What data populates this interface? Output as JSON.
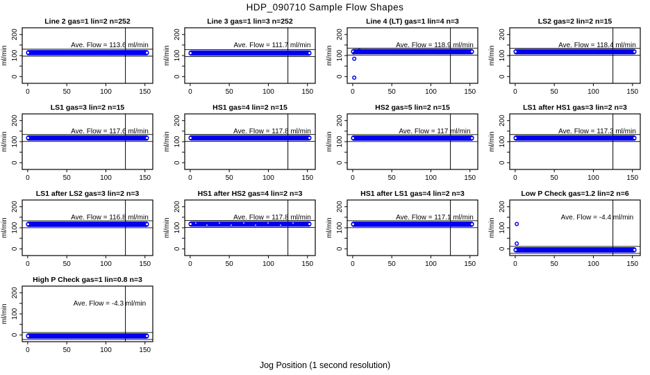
{
  "page_title": "HDP_090710  Sample Flow Shapes",
  "xlabel": "Jog Position (1 second resolution)",
  "colors": {
    "point_blue": "#0000EE",
    "axis_black": "#000000",
    "background": "#FFFFFF"
  },
  "chart_data": {
    "type": "scatter",
    "layout_hint": "13 small-multiple panels in a 4x4 grid, last row has 1 panel; grid off; no legend",
    "ylabel_per_panel": "ml/min",
    "x_ticks": [
      0,
      50,
      100,
      150
    ],
    "y_ticks": [
      0,
      50,
      100,
      150,
      200
    ],
    "y_tick_labels": [
      "0",
      "100",
      "200"
    ],
    "xlim": [
      -7,
      160
    ],
    "ylim": [
      -32,
      232
    ],
    "vline_x": 125,
    "band_x_range": [
      0,
      153
    ],
    "ave_prefix": "Ave. Flow =",
    "unit": "ml/min",
    "panels": [
      {
        "title": "Line 2 gas=1 lin=2 n=252",
        "ave_flow": "113.6",
        "flow": 113.6,
        "outliers": [],
        "hump": false,
        "speckled": false
      },
      {
        "title": "Line 3 gas=1 lin=3 n=252",
        "ave_flow": "111.7",
        "flow": 111.7,
        "outliers": [],
        "hump": false,
        "speckled": false
      },
      {
        "title": "Line 4 (LT) gas=1 lin=4 n=3",
        "ave_flow": "118.9",
        "flow": 118.9,
        "outliers": [
          [
            2,
            -5
          ],
          [
            2,
            85
          ]
        ],
        "hump": true,
        "speckled": false
      },
      {
        "title": "LS2 gas=2 lin=2 n=15",
        "ave_flow": "118.4",
        "flow": 118.4,
        "outliers": [],
        "hump": false,
        "speckled": false
      },
      {
        "title": "LS1 gas=3 lin=2 n=15",
        "ave_flow": "117.6",
        "flow": 117.6,
        "outliers": [],
        "hump": false,
        "speckled": false
      },
      {
        "title": "HS1 gas=4 lin=2 n=15",
        "ave_flow": "117.8",
        "flow": 117.8,
        "outliers": [],
        "hump": false,
        "speckled": false
      },
      {
        "title": "HS2 gas=5 lin=2 n=15",
        "ave_flow": "117",
        "flow": 117.0,
        "outliers": [],
        "hump": false,
        "speckled": false
      },
      {
        "title": "LS1 after HS1 gas=3 lin=2 n=3",
        "ave_flow": "117.3",
        "flow": 117.3,
        "outliers": [],
        "hump": false,
        "speckled": false
      },
      {
        "title": "LS1 after LS2 gas=3 lin=2 n=3",
        "ave_flow": "116.8",
        "flow": 116.8,
        "outliers": [],
        "hump": false,
        "speckled": false
      },
      {
        "title": "HS1 after HS2 gas=4 lin=2 n=3",
        "ave_flow": "117.8",
        "flow": 117.8,
        "outliers": [],
        "hump": false,
        "speckled": true
      },
      {
        "title": "HS1 after LS1 gas=4 lin=2 n=3",
        "ave_flow": "117.1",
        "flow": 117.1,
        "outliers": [],
        "hump": false,
        "speckled": false
      },
      {
        "title": "Low P Check gas=1.2 lin=2 n=6",
        "ave_flow": "-4.4",
        "flow": -5.0,
        "outliers": [
          [
            2,
            118
          ],
          [
            2,
            25
          ]
        ],
        "hump": false,
        "speckled": false
      },
      {
        "title": "High P Check gas=1 lin=0.8 n=3",
        "ave_flow": "-4.3",
        "flow": -5.0,
        "outliers": [],
        "hump": false,
        "speckled": false
      }
    ]
  }
}
